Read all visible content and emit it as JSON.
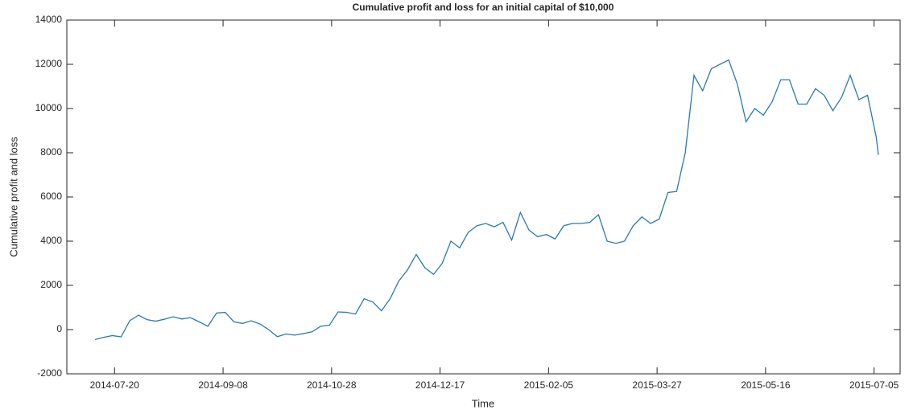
{
  "chart_data": {
    "type": "line",
    "title": "Cumulative profit and loss for an initial capital of $10,000",
    "xlabel": "Time",
    "ylabel": "Cumulative profit and loss",
    "x": [
      "2014-07-11",
      "2014-07-15",
      "2014-07-19",
      "2014-07-23",
      "2014-07-27",
      "2014-07-31",
      "2014-08-04",
      "2014-08-08",
      "2014-08-12",
      "2014-08-16",
      "2014-08-20",
      "2014-08-24",
      "2014-08-28",
      "2014-09-01",
      "2014-09-05",
      "2014-09-09",
      "2014-09-13",
      "2014-09-17",
      "2014-09-21",
      "2014-09-25",
      "2014-09-29",
      "2014-10-03",
      "2014-10-07",
      "2014-10-11",
      "2014-10-15",
      "2014-10-19",
      "2014-10-23",
      "2014-10-27",
      "2014-10-31",
      "2014-11-04",
      "2014-11-08",
      "2014-11-12",
      "2014-11-16",
      "2014-11-20",
      "2014-11-24",
      "2014-11-28",
      "2014-12-02",
      "2014-12-06",
      "2014-12-10",
      "2014-12-14",
      "2014-12-18",
      "2014-12-22",
      "2014-12-26",
      "2014-12-30",
      "2015-01-03",
      "2015-01-07",
      "2015-01-11",
      "2015-01-15",
      "2015-01-19",
      "2015-01-23",
      "2015-01-27",
      "2015-01-31",
      "2015-02-04",
      "2015-02-08",
      "2015-02-12",
      "2015-02-16",
      "2015-02-20",
      "2015-02-24",
      "2015-02-28",
      "2015-03-04",
      "2015-03-08",
      "2015-03-12",
      "2015-03-16",
      "2015-03-20",
      "2015-03-24",
      "2015-03-28",
      "2015-04-01",
      "2015-04-05",
      "2015-04-09",
      "2015-04-13",
      "2015-04-17",
      "2015-04-21",
      "2015-04-25",
      "2015-04-29",
      "2015-05-03",
      "2015-05-07",
      "2015-05-11",
      "2015-05-15",
      "2015-05-19",
      "2015-05-23",
      "2015-05-27",
      "2015-05-31",
      "2015-06-04",
      "2015-06-08",
      "2015-06-12",
      "2015-06-16",
      "2015-06-20",
      "2015-06-24",
      "2015-06-28",
      "2015-07-02",
      "2015-07-06",
      "2015-07-07"
    ],
    "series": [
      {
        "color": "#2a7ab0",
        "values": [
          -450,
          -350,
          -270,
          -330,
          400,
          650,
          450,
          380,
          470,
          580,
          480,
          540,
          350,
          150,
          750,
          780,
          350,
          280,
          400,
          250,
          0,
          -320,
          -200,
          -250,
          -180,
          -100,
          150,
          200,
          800,
          780,
          700,
          1400,
          1250,
          850,
          1400,
          2200,
          2700,
          3400,
          2800,
          2500,
          3000,
          4000,
          3700,
          4400,
          4700,
          4800,
          4650,
          4850,
          4050,
          5300,
          4500,
          4200,
          4300,
          4100,
          4700,
          4800,
          4800,
          4850,
          5200,
          4000,
          3900,
          4000,
          4700,
          5100,
          4800,
          5000,
          6200,
          6250,
          8000,
          11500,
          10800,
          11800,
          12000,
          12200,
          11100,
          9400,
          10000,
          9700,
          10300,
          11300,
          11300,
          10200,
          10200,
          10900,
          10600,
          9900,
          10500,
          11500,
          10400,
          10600,
          8700,
          7900
        ]
      }
    ],
    "xlim": [
      "2014-06-28",
      "2015-07-17"
    ],
    "xticks": [
      "2014-07-20",
      "2014-09-08",
      "2014-10-28",
      "2014-12-17",
      "2015-02-05",
      "2015-03-27",
      "2015-05-16",
      "2015-07-05"
    ],
    "ylim": [
      -2000,
      14000
    ],
    "yticks": [
      -2000,
      0,
      2000,
      4000,
      6000,
      8000,
      10000,
      12000,
      14000
    ]
  }
}
